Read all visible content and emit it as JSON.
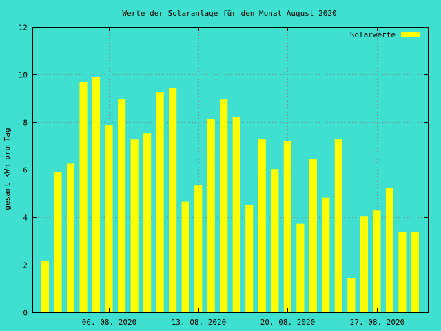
{
  "colors": {
    "background": "#40e0d0",
    "bar": "#ffff00",
    "marker": "#dcdc00"
  },
  "chart_data": {
    "type": "bar",
    "title": "Werte der Solaranlage für den Monat August 2020",
    "xlabel": "",
    "ylabel": "gesamt kWh pro Tag",
    "ylim": [
      0,
      12
    ],
    "xlim": [
      "2020-07-31",
      "2020-08-31"
    ],
    "yticks": [
      0,
      2,
      4,
      6,
      8,
      10,
      12
    ],
    "xticks": [
      {
        "date": "2020-08-06",
        "label": "06. 08. 2020"
      },
      {
        "date": "2020-08-13",
        "label": "13. 08. 2020"
      },
      {
        "date": "2020-08-20",
        "label": "20. 08. 2020"
      },
      {
        "date": "2020-08-27",
        "label": "27. 08. 2020"
      }
    ],
    "grid": true,
    "legend": "top-right",
    "series": [
      {
        "name": "Solarwerte",
        "x": [
          "2020-08-01",
          "2020-08-02",
          "2020-08-03",
          "2020-08-04",
          "2020-08-05",
          "2020-08-06",
          "2020-08-07",
          "2020-08-08",
          "2020-08-09",
          "2020-08-10",
          "2020-08-11",
          "2020-08-12",
          "2020-08-13",
          "2020-08-14",
          "2020-08-15",
          "2020-08-16",
          "2020-08-17",
          "2020-08-18",
          "2020-08-19",
          "2020-08-20",
          "2020-08-21",
          "2020-08-22",
          "2020-08-23",
          "2020-08-24",
          "2020-08-25",
          "2020-08-26",
          "2020-08-27",
          "2020-08-28",
          "2020-08-29",
          "2020-08-30"
        ],
        "values": [
          2.15,
          5.9,
          6.25,
          9.68,
          9.9,
          7.88,
          8.98,
          7.27,
          7.53,
          9.27,
          9.42,
          4.65,
          5.33,
          8.12,
          8.95,
          8.2,
          4.5,
          7.27,
          6.02,
          7.2,
          3.72,
          6.45,
          4.82,
          7.27,
          1.45,
          4.05,
          4.28,
          5.23,
          3.37,
          3.37
        ]
      }
    ],
    "marker": {
      "date": "2020-07-31",
      "value": 10
    }
  }
}
